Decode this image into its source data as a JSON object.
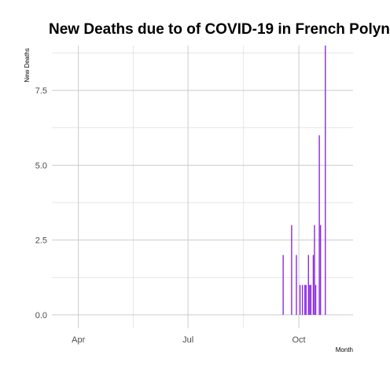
{
  "chart_data": {
    "type": "bar",
    "title": "New Deaths due to of COVID-19 in French Polyn",
    "xlabel": "Month",
    "ylabel": "New Deaths",
    "x_ticks": [
      {
        "date": "2020-04-01",
        "label": "Apr"
      },
      {
        "date": "2020-07-01",
        "label": "Jul"
      },
      {
        "date": "2020-10-01",
        "label": "Oct"
      }
    ],
    "y_ticks": [
      0.0,
      2.5,
      5.0,
      7.5
    ],
    "y_tick_labels": [
      "0.0",
      "2.5",
      "5.0",
      "7.5"
    ],
    "xlim": [
      "2020-03-10",
      "2020-11-15"
    ],
    "ylim": [
      -0.45,
      9.0
    ],
    "grid": true,
    "bar_color": "#8a2be2",
    "points": [
      {
        "date": "2020-09-18",
        "value": 2
      },
      {
        "date": "2020-09-25",
        "value": 3
      },
      {
        "date": "2020-09-29",
        "value": 2
      },
      {
        "date": "2020-10-02",
        "value": 1
      },
      {
        "date": "2020-10-04",
        "value": 1
      },
      {
        "date": "2020-10-06",
        "value": 1
      },
      {
        "date": "2020-10-07",
        "value": 1
      },
      {
        "date": "2020-10-09",
        "value": 2
      },
      {
        "date": "2020-10-10",
        "value": 1
      },
      {
        "date": "2020-10-11",
        "value": 1
      },
      {
        "date": "2020-10-13",
        "value": 2
      },
      {
        "date": "2020-10-14",
        "value": 3
      },
      {
        "date": "2020-10-15",
        "value": 1
      },
      {
        "date": "2020-10-18",
        "value": 6
      },
      {
        "date": "2020-10-19",
        "value": 3
      },
      {
        "date": "2020-10-23",
        "value": 9
      }
    ]
  }
}
